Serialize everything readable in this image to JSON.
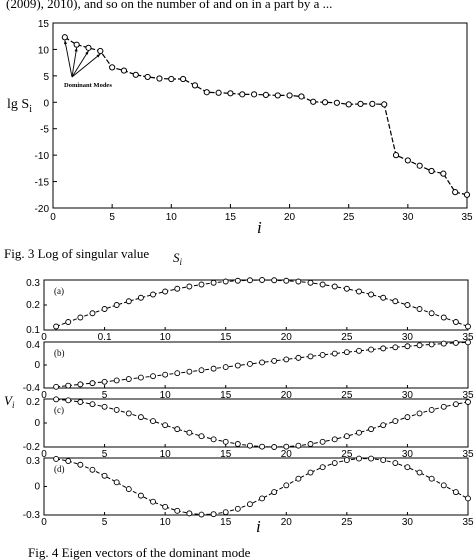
{
  "header_text": "(2009), 2010), and so on the number of and on in a part by a ...",
  "chart_data": [
    {
      "type": "line",
      "caption": "Fig. 3 Log of singular value",
      "caption_symbol": "S",
      "caption_sub": "i",
      "xlabel": "i",
      "ylabel": "lg S",
      "ylabel_sub": "i",
      "annotation": "Dominant Modes",
      "xlim": [
        0,
        35
      ],
      "ylim": [
        -20,
        15
      ],
      "xticks": [
        "0",
        "5",
        "10",
        "15",
        "20",
        "25",
        "30",
        "35"
      ],
      "yticks": [
        "15",
        "10",
        "5",
        "0",
        "-5",
        "-10",
        "-15",
        "-20"
      ],
      "x": [
        1,
        2,
        3,
        4,
        5,
        6,
        7,
        8,
        9,
        10,
        11,
        12,
        13,
        14,
        15,
        16,
        17,
        18,
        19,
        20,
        21,
        22,
        23,
        24,
        25,
        26,
        27,
        28,
        29,
        30,
        31,
        32,
        33,
        34,
        35
      ],
      "values": [
        12.3,
        10.9,
        10.3,
        9.7,
        6.6,
        6.0,
        5.2,
        4.8,
        4.5,
        4.4,
        4.4,
        3.2,
        1.9,
        1.8,
        1.7,
        1.5,
        1.5,
        1.4,
        1.3,
        1.3,
        1.1,
        0.1,
        0.0,
        -0.1,
        -0.4,
        -0.3,
        -0.3,
        -0.4,
        -10.0,
        -11.0,
        -12.0,
        -13.0,
        -13.5,
        -17.0,
        -17.5
      ]
    },
    {
      "type": "line",
      "caption": "Fig. 4 Eigen vectors of the dominant mode",
      "xlabel": "i",
      "ylabel": "V",
      "ylabel_sub": "i",
      "xlim": [
        0,
        35
      ],
      "xticks": [
        "0",
        "5",
        "10",
        "15",
        "20",
        "25",
        "30",
        "35"
      ],
      "panels": [
        {
          "label": "(a)",
          "ylim": [
            0.1,
            0.3
          ],
          "yticks": [
            "0.3",
            "0.2",
            "0.1"
          ],
          "xticks": [
            "0",
            "0.1",
            "10",
            "15",
            "20",
            "25",
            "30",
            "35"
          ],
          "values": [
            0.114,
            0.132,
            0.15,
            0.167,
            0.184,
            0.2,
            0.215,
            0.229,
            0.242,
            0.254,
            0.265,
            0.274,
            0.282,
            0.289,
            0.294,
            0.297,
            0.299,
            0.3,
            0.299,
            0.297,
            0.294,
            0.289,
            0.282,
            0.274,
            0.265,
            0.254,
            0.242,
            0.229,
            0.215,
            0.2,
            0.184,
            0.167,
            0.15,
            0.132,
            0.114
          ]
        },
        {
          "label": "(b)",
          "ylim": [
            -0.4,
            0.4
          ],
          "yticks": [
            "0.4",
            "0",
            "-0.4"
          ],
          "values": [
            -0.38,
            -0.359,
            -0.337,
            -0.315,
            -0.292,
            -0.268,
            -0.244,
            -0.219,
            -0.194,
            -0.168,
            -0.142,
            -0.116,
            -0.09,
            -0.063,
            -0.036,
            -0.009,
            0.018,
            0.044,
            0.071,
            0.097,
            0.124,
            0.149,
            0.175,
            0.199,
            0.223,
            0.246,
            0.268,
            0.289,
            0.308,
            0.326,
            0.343,
            0.358,
            0.372,
            0.384,
            0.394
          ]
        },
        {
          "label": "(c)",
          "ylim": [
            -0.2,
            0.2
          ],
          "yticks": [
            "0.2",
            "0",
            "-0.2"
          ],
          "values": [
            0.197,
            0.189,
            0.175,
            0.157,
            0.135,
            0.109,
            0.08,
            0.049,
            0.016,
            -0.018,
            -0.051,
            -0.081,
            -0.11,
            -0.136,
            -0.157,
            -0.175,
            -0.189,
            -0.197,
            -0.2,
            -0.197,
            -0.189,
            -0.175,
            -0.157,
            -0.136,
            -0.11,
            -0.081,
            -0.051,
            -0.018,
            0.016,
            0.049,
            0.08,
            0.109,
            0.135,
            0.157,
            0.175
          ]
        },
        {
          "label": "(d)",
          "ylim": [
            -0.3,
            0.3
          ],
          "yticks": [
            "0.3",
            "0",
            "-0.3"
          ],
          "values": [
            0.29,
            0.268,
            0.229,
            0.176,
            0.113,
            0.044,
            -0.027,
            -0.096,
            -0.16,
            -0.214,
            -0.256,
            -0.283,
            -0.295,
            -0.291,
            -0.27,
            -0.235,
            -0.186,
            -0.126,
            -0.059,
            0.012,
            0.082,
            0.147,
            0.203,
            0.247,
            0.278,
            0.294,
            0.294,
            0.278,
            0.247,
            0.203,
            0.147,
            0.082,
            0.012,
            -0.059,
            -0.126
          ]
        }
      ]
    }
  ]
}
